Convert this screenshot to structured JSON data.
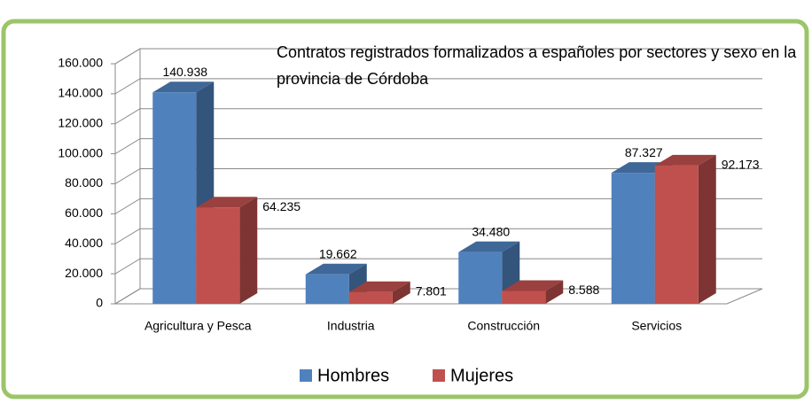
{
  "chart_data": {
    "type": "bar3d",
    "title": "Contratos registrados  formalizados a españoles por sectores y sexo en la provincia de Córdoba",
    "categories": [
      "Agricultura y Pesca",
      "Industria",
      "Construcción",
      "Servicios"
    ],
    "series": [
      {
        "name": "Hombres",
        "color": "#4f81bd",
        "values": [
          140938,
          19662,
          34480,
          87327
        ],
        "value_labels": [
          "140.938",
          "19.662",
          "34.480",
          "87.327"
        ]
      },
      {
        "name": "Mujeres",
        "color": "#c0504d",
        "values": [
          64235,
          7801,
          8588,
          92173
        ],
        "value_labels": [
          "64.235",
          "7.801",
          "8.588",
          "92.173"
        ]
      }
    ],
    "ylim": [
      0,
      160000
    ],
    "yticks": [
      0,
      {
        "value": 20000,
        "label": "20.000"
      },
      {
        "value": 40000,
        "label": "40.000"
      },
      {
        "value": 60000,
        "label": "60.000"
      },
      {
        "value": 80000,
        "label": "80.000"
      },
      {
        "value": 100000,
        "label": "100.000"
      },
      {
        "value": 120000,
        "label": "120.000"
      },
      {
        "value": 140000,
        "label": "140.000"
      },
      {
        "value": 160000,
        "label": "160.000"
      }
    ],
    "grid": true,
    "legend": "bottom"
  }
}
